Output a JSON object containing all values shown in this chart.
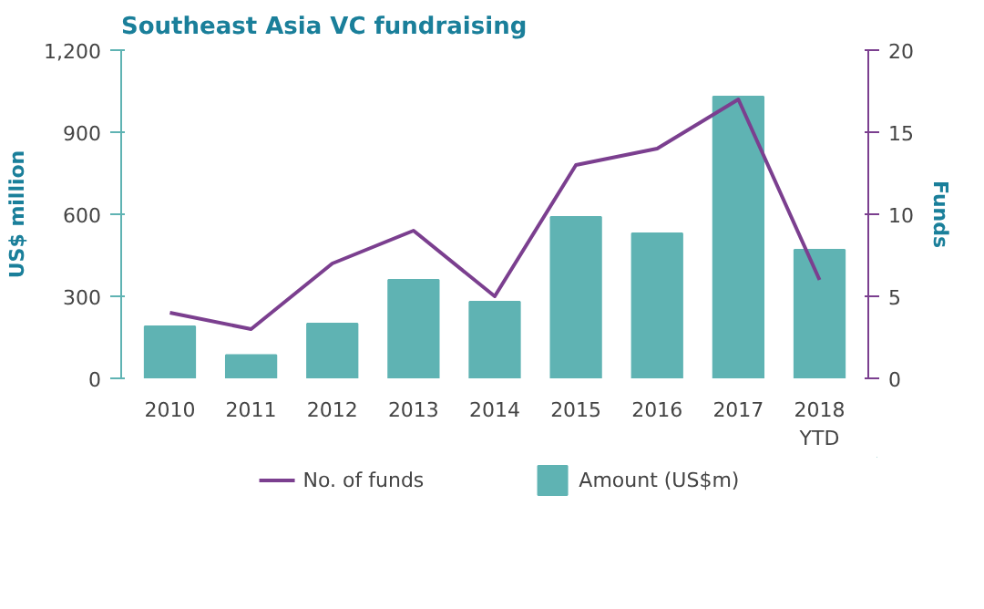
{
  "chart_data": {
    "type": "bar",
    "title": "Southeast Asia VC fundraising",
    "categories": [
      "2010",
      "2011",
      "2012",
      "2013",
      "2014",
      "2015",
      "2016",
      "2017",
      "2018\nYTD"
    ],
    "ylabel": "US$ million",
    "y2label": "Funds",
    "ylim": [
      0,
      1200
    ],
    "yticks": [
      0,
      {
        "value": 300,
        "label": "300"
      },
      {
        "value": 600,
        "label": "600"
      },
      {
        "value": 900,
        "label": "900"
      },
      {
        "value": 1200,
        "label": "1,200"
      }
    ],
    "y2lim": [
      0,
      20
    ],
    "y2ticks": [
      0,
      5,
      10,
      15,
      20
    ],
    "series": [
      {
        "name": "No. of funds",
        "type": "line",
        "axis": "y2",
        "color": "#7b3f8f",
        "values": [
          4,
          3,
          7,
          9,
          5,
          13,
          14,
          17,
          6
        ]
      },
      {
        "name": "Amount (US$m)",
        "color": "#5fb3b3",
        "values": [
          190,
          85,
          200,
          360,
          280,
          590,
          530,
          1030,
          470
        ]
      }
    ],
    "legend": "bottom",
    "grid": false
  }
}
